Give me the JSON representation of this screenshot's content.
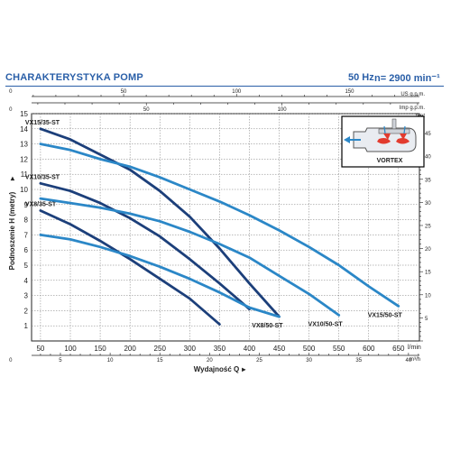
{
  "header": {
    "title": "CHARAKTERYSTYKA POMP",
    "frequency": "50 Hz",
    "speed": "n= 2900 min⁻¹"
  },
  "inset": {
    "label": "VORTEX"
  },
  "chart_data": {
    "type": "line",
    "title": "",
    "xlabel": "Wydajność Q",
    "ylabel": "Podnoszenie H (metry)",
    "xlim": [
      35,
      685
    ],
    "ylim": [
      0,
      15
    ],
    "grid": true,
    "x_unit": "l/min",
    "y_unit": "",
    "x_ticks": [
      "50",
      "100",
      "150",
      "200",
      "250",
      "300",
      "350",
      "400",
      "450",
      "500",
      "550",
      "600",
      "650"
    ],
    "y_ticks": [
      "1",
      "2",
      "3",
      "4",
      "5",
      "6",
      "7",
      "8",
      "9",
      "10",
      "11",
      "12",
      "13",
      "14",
      "15"
    ],
    "top_axis": {
      "unit": "US g.p.m.",
      "unit2": "Imp g.p.m.",
      "us_ticks": [
        "0",
        "50",
        "100",
        "150"
      ],
      "imp_ticks": [
        "0",
        "50",
        "100"
      ]
    },
    "bottom_axis2": {
      "unit": "m³/h",
      "ticks": [
        "0",
        "5",
        "10",
        "15",
        "20",
        "25",
        "30",
        "35",
        "40"
      ]
    },
    "right_axis": {
      "unit": "feet",
      "ticks": [
        "5",
        "10",
        "15",
        "20",
        "25",
        "30",
        "35",
        "40",
        "45"
      ]
    },
    "series": [
      {
        "name": "VX15/35-ST",
        "color": "#1c3f7a",
        "points": [
          [
            50,
            14
          ],
          [
            100,
            13.3
          ],
          [
            150,
            12.3
          ],
          [
            200,
            11.3
          ],
          [
            250,
            9.9
          ],
          [
            300,
            8.2
          ],
          [
            350,
            6.1
          ],
          [
            400,
            3.8
          ],
          [
            450,
            1.6
          ]
        ]
      },
      {
        "name": "VX10/35-ST",
        "color": "#1c3f7a",
        "points": [
          [
            50,
            10.4
          ],
          [
            100,
            9.9
          ],
          [
            150,
            9.1
          ],
          [
            200,
            8.1
          ],
          [
            250,
            6.9
          ],
          [
            300,
            5.4
          ],
          [
            350,
            3.8
          ],
          [
            400,
            2.1
          ]
        ]
      },
      {
        "name": "VX8/35-ST",
        "color": "#1c3f7a",
        "points": [
          [
            50,
            8.6
          ],
          [
            100,
            7.7
          ],
          [
            150,
            6.6
          ],
          [
            200,
            5.4
          ],
          [
            250,
            4.1
          ],
          [
            300,
            2.8
          ],
          [
            350,
            1.1
          ]
        ]
      },
      {
        "name": "VX15/50-ST",
        "color": "#2b87c7",
        "points": [
          [
            50,
            13
          ],
          [
            100,
            12.6
          ],
          [
            150,
            12
          ],
          [
            200,
            11.5
          ],
          [
            250,
            10.8
          ],
          [
            300,
            10
          ],
          [
            350,
            9.2
          ],
          [
            400,
            8.3
          ],
          [
            450,
            7.3
          ],
          [
            500,
            6.2
          ],
          [
            550,
            5
          ],
          [
            600,
            3.6
          ],
          [
            650,
            2.3
          ]
        ]
      },
      {
        "name": "VX10/50-ST",
        "color": "#2b87c7",
        "points": [
          [
            50,
            9.4
          ],
          [
            100,
            9.1
          ],
          [
            150,
            8.8
          ],
          [
            200,
            8.4
          ],
          [
            250,
            7.9
          ],
          [
            300,
            7.2
          ],
          [
            350,
            6.4
          ],
          [
            400,
            5.5
          ],
          [
            450,
            4.3
          ],
          [
            500,
            3.1
          ],
          [
            550,
            1.7
          ]
        ]
      },
      {
        "name": "VX8/50-ST",
        "color": "#2b87c7",
        "points": [
          [
            50,
            7
          ],
          [
            100,
            6.7
          ],
          [
            150,
            6.2
          ],
          [
            200,
            5.6
          ],
          [
            250,
            4.9
          ],
          [
            300,
            4.1
          ],
          [
            350,
            3.2
          ],
          [
            400,
            2.2
          ],
          [
            450,
            1.6
          ]
        ]
      }
    ]
  }
}
